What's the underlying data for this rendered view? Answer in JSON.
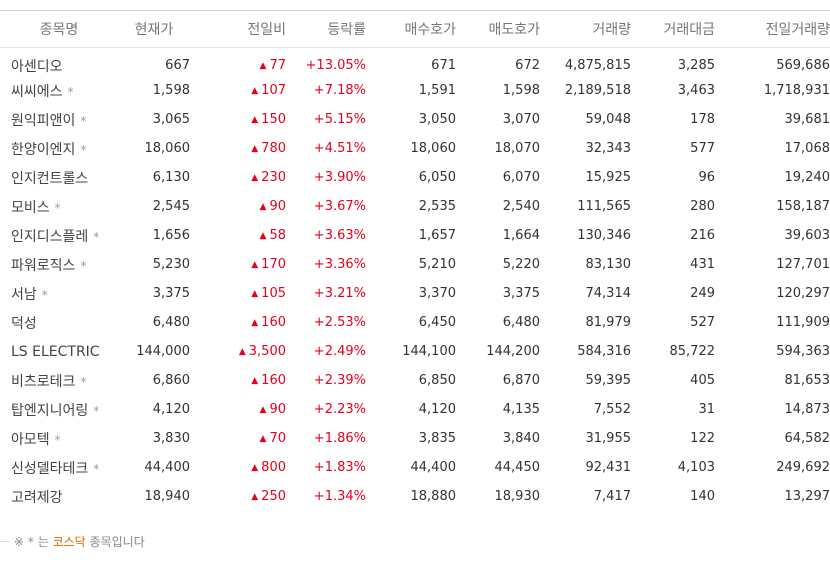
{
  "columns": [
    "종목명",
    "현재가",
    "전일비",
    "등락률",
    "매수호가",
    "매도호가",
    "거래량",
    "거래대금",
    "전일거래량"
  ],
  "star_glyph": "*",
  "up_glyph": "▲",
  "colors": {
    "up": "#e8001c",
    "kosdaq_note": "#e06a00",
    "header_text": "#777777"
  },
  "rows": [
    {
      "name": "아센디오",
      "kosdaq": false,
      "price": "667",
      "change": "77",
      "rate": "+13.05%",
      "bid": "671",
      "ask": "672",
      "volume": "4,875,815",
      "amount": "3,285",
      "prev_volume": "569,686"
    },
    {
      "name": "씨씨에스",
      "kosdaq": true,
      "price": "1,598",
      "change": "107",
      "rate": "+7.18%",
      "bid": "1,591",
      "ask": "1,598",
      "volume": "2,189,518",
      "amount": "3,463",
      "prev_volume": "1,718,931"
    },
    {
      "name": "원익피앤이",
      "kosdaq": true,
      "price": "3,065",
      "change": "150",
      "rate": "+5.15%",
      "bid": "3,050",
      "ask": "3,070",
      "volume": "59,048",
      "amount": "178",
      "prev_volume": "39,681"
    },
    {
      "name": "한양이엔지",
      "kosdaq": true,
      "price": "18,060",
      "change": "780",
      "rate": "+4.51%",
      "bid": "18,060",
      "ask": "18,070",
      "volume": "32,343",
      "amount": "577",
      "prev_volume": "17,068"
    },
    {
      "name": "인지컨트롤스",
      "kosdaq": false,
      "price": "6,130",
      "change": "230",
      "rate": "+3.90%",
      "bid": "6,050",
      "ask": "6,070",
      "volume": "15,925",
      "amount": "96",
      "prev_volume": "19,240"
    },
    {
      "name": "모비스",
      "kosdaq": true,
      "price": "2,545",
      "change": "90",
      "rate": "+3.67%",
      "bid": "2,535",
      "ask": "2,540",
      "volume": "111,565",
      "amount": "280",
      "prev_volume": "158,187"
    },
    {
      "name": "인지디스플레",
      "kosdaq": true,
      "price": "1,656",
      "change": "58",
      "rate": "+3.63%",
      "bid": "1,657",
      "ask": "1,664",
      "volume": "130,346",
      "amount": "216",
      "prev_volume": "39,603"
    },
    {
      "name": "파워로직스",
      "kosdaq": true,
      "price": "5,230",
      "change": "170",
      "rate": "+3.36%",
      "bid": "5,210",
      "ask": "5,220",
      "volume": "83,130",
      "amount": "431",
      "prev_volume": "127,701"
    },
    {
      "name": "서남",
      "kosdaq": true,
      "price": "3,375",
      "change": "105",
      "rate": "+3.21%",
      "bid": "3,370",
      "ask": "3,375",
      "volume": "74,314",
      "amount": "249",
      "prev_volume": "120,297"
    },
    {
      "name": "덕성",
      "kosdaq": false,
      "price": "6,480",
      "change": "160",
      "rate": "+2.53%",
      "bid": "6,450",
      "ask": "6,480",
      "volume": "81,979",
      "amount": "527",
      "prev_volume": "111,909"
    },
    {
      "name": "LS ELECTRIC",
      "kosdaq": false,
      "price": "144,000",
      "change": "3,500",
      "rate": "+2.49%",
      "bid": "144,100",
      "ask": "144,200",
      "volume": "584,316",
      "amount": "85,722",
      "prev_volume": "594,363"
    },
    {
      "name": "비츠로테크",
      "kosdaq": true,
      "price": "6,860",
      "change": "160",
      "rate": "+2.39%",
      "bid": "6,850",
      "ask": "6,870",
      "volume": "59,395",
      "amount": "405",
      "prev_volume": "81,653"
    },
    {
      "name": "탑엔지니어링",
      "kosdaq": true,
      "price": "4,120",
      "change": "90",
      "rate": "+2.23%",
      "bid": "4,120",
      "ask": "4,135",
      "volume": "7,552",
      "amount": "31",
      "prev_volume": "14,873"
    },
    {
      "name": "아모텍",
      "kosdaq": true,
      "price": "3,830",
      "change": "70",
      "rate": "+1.86%",
      "bid": "3,835",
      "ask": "3,840",
      "volume": "31,955",
      "amount": "122",
      "prev_volume": "64,582"
    },
    {
      "name": "신성델타테크",
      "kosdaq": true,
      "price": "44,400",
      "change": "800",
      "rate": "+1.83%",
      "bid": "44,400",
      "ask": "44,450",
      "volume": "92,431",
      "amount": "4,103",
      "prev_volume": "249,692"
    },
    {
      "name": "고려제강",
      "kosdaq": false,
      "price": "18,940",
      "change": "250",
      "rate": "+1.34%",
      "bid": "18,880",
      "ask": "18,930",
      "volume": "7,417",
      "amount": "140",
      "prev_volume": "13,297"
    }
  ],
  "footnote": {
    "mark": "※",
    "star": "*",
    "text_before": "는",
    "kosdaq_label": "코스닥",
    "text_after": "종목입니다"
  }
}
